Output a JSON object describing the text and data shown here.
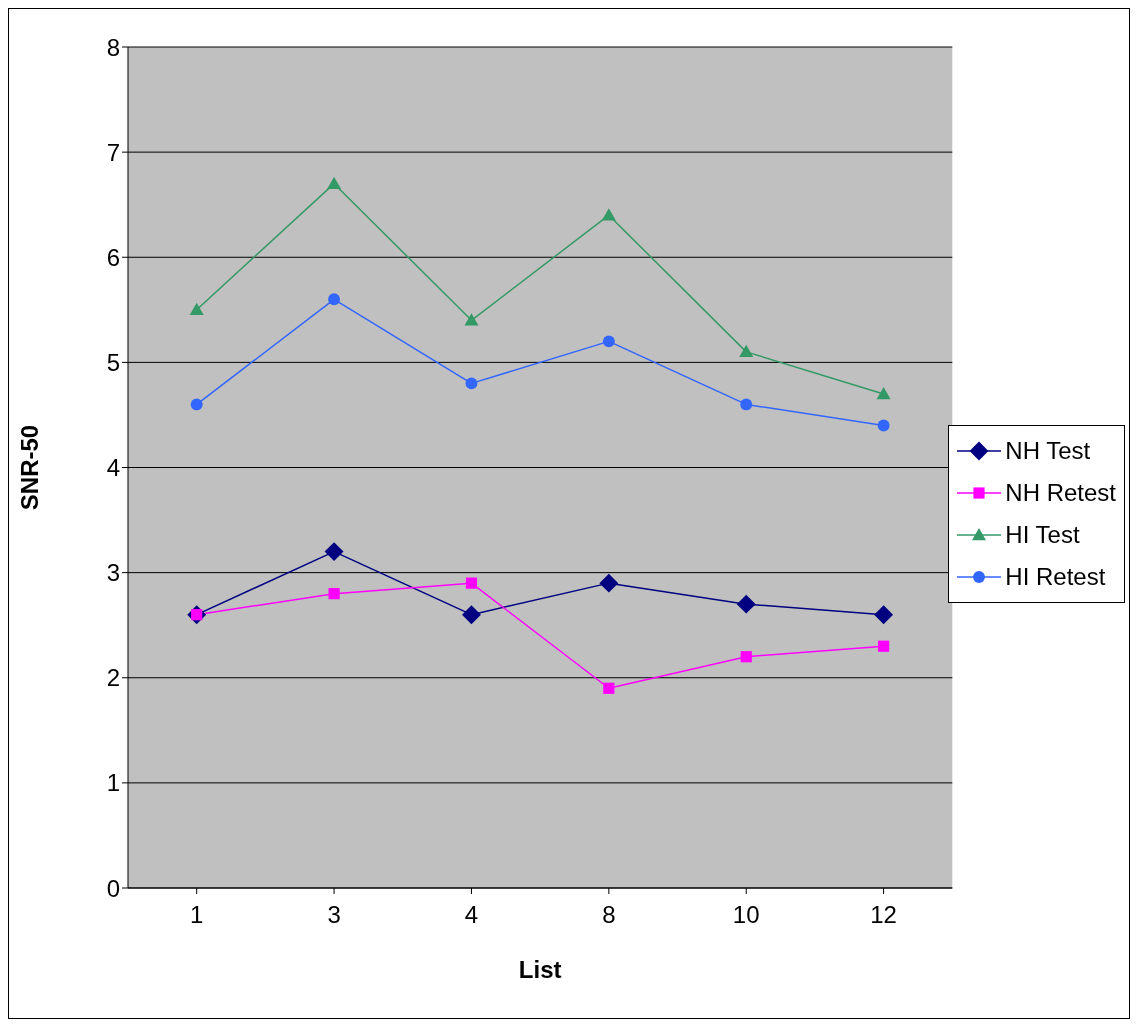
{
  "chart_data": {
    "type": "line",
    "xlabel": "List",
    "ylabel": "SNR-50",
    "categories": [
      "1",
      "3",
      "4",
      "8",
      "10",
      "12"
    ],
    "ylim": [
      0,
      8
    ],
    "yticks": [
      0,
      1,
      2,
      3,
      4,
      5,
      6,
      7,
      8
    ],
    "grid": "y",
    "legend": "right",
    "series": [
      {
        "name": "NH Test",
        "color": "#000080",
        "marker": "diamond",
        "values": [
          2.6,
          3.2,
          2.6,
          2.9,
          2.7,
          2.6
        ]
      },
      {
        "name": "NH Retest",
        "color": "#ff00ff",
        "marker": "square",
        "values": [
          2.6,
          2.8,
          2.9,
          1.9,
          2.2,
          2.3
        ]
      },
      {
        "name": "HI Test",
        "color": "#339966",
        "marker": "triangle",
        "values": [
          5.5,
          6.7,
          5.4,
          6.4,
          5.1,
          4.7
        ]
      },
      {
        "name": "HI Retest",
        "color": "#3366ff",
        "marker": "circle",
        "values": [
          4.6,
          5.6,
          4.8,
          5.2,
          4.6,
          4.4
        ]
      }
    ]
  }
}
